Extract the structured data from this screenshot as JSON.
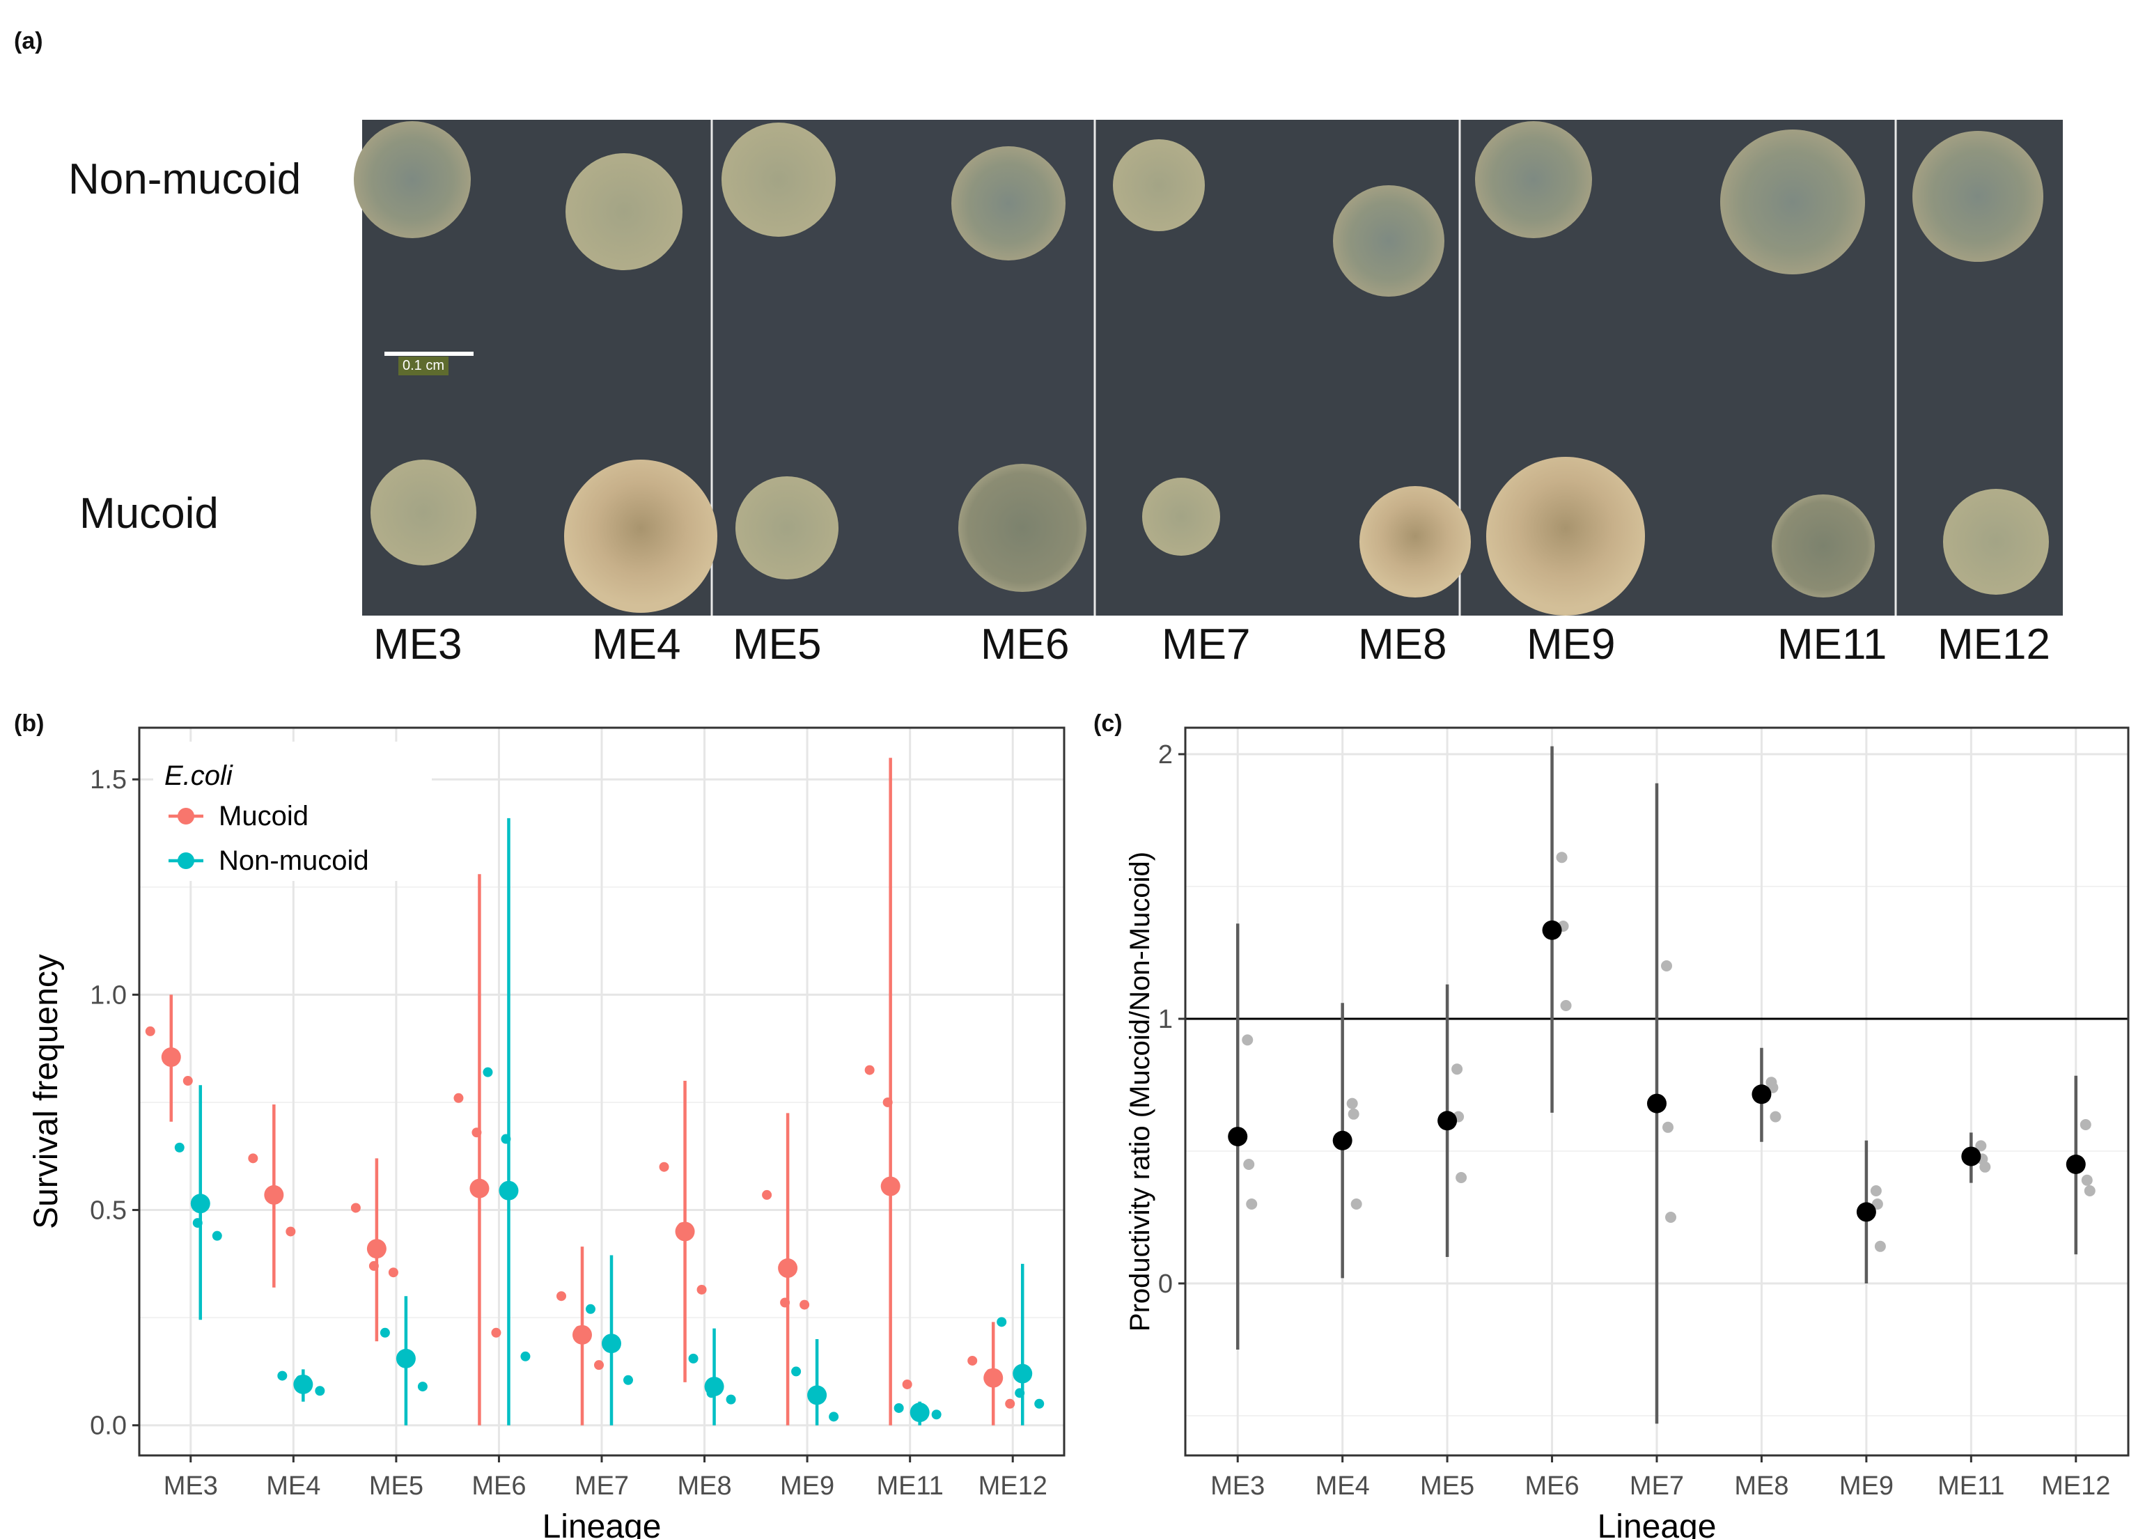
{
  "panel_a": {
    "letter": "(a)",
    "rows": [
      "Non-mucoid",
      "Mucoid"
    ],
    "scale_bar_label": "0.1 cm",
    "lineages": [
      "ME3",
      "ME4",
      "ME5",
      "ME6",
      "ME7",
      "ME8",
      "ME9",
      "ME11",
      "ME12"
    ],
    "colors": {
      "agar": "#3b4148",
      "colony_light": "#8f937f",
      "colony_dark": "#6e7668",
      "colony_tan": "#c7b08a"
    }
  },
  "panel_b": {
    "letter": "(b)"
  },
  "panel_c": {
    "letter": "(c)"
  },
  "chart_data": [
    {
      "type": "scatter",
      "xlabel": "Lineage",
      "ylabel": "Survival frequency",
      "categories": [
        "ME3",
        "ME4",
        "ME5",
        "ME6",
        "ME7",
        "ME8",
        "ME9",
        "ME11",
        "ME12"
      ],
      "ylim": [
        -0.07,
        1.62
      ],
      "yticks": [
        0.0,
        0.5,
        1.0,
        1.5
      ],
      "ytick_labels": [
        "0.0",
        "0.5",
        "1.0",
        "1.5"
      ],
      "grid": true,
      "legend": {
        "title": "E.coli",
        "position": "top-left",
        "entries": [
          "Mucoid",
          "Non-mucoid"
        ]
      },
      "series": [
        {
          "name": "Mucoid",
          "color": "#f8766d",
          "means": [
            0.855,
            0.535,
            0.41,
            0.55,
            0.21,
            0.45,
            0.365,
            0.555,
            0.11
          ],
          "ci_low": [
            0.705,
            0.32,
            0.195,
            0.0,
            0.0,
            0.1,
            0.0,
            0.0,
            0.0
          ],
          "ci_high": [
            1.0,
            0.745,
            0.62,
            1.28,
            0.415,
            0.8,
            0.725,
            1.55,
            0.24
          ],
          "points": [
            [
              0.915,
              0.85,
              0.8
            ],
            [
              0.62,
              0.535,
              0.45
            ],
            [
              0.505,
              0.37,
              0.355
            ],
            [
              0.76,
              0.68,
              0.215
            ],
            [
              0.3,
              0.22,
              0.14
            ],
            [
              0.6,
              0.46,
              0.315
            ],
            [
              0.535,
              0.285,
              0.28
            ],
            [
              0.825,
              0.75,
              0.095
            ],
            [
              0.15,
              0.12,
              0.05
            ]
          ]
        },
        {
          "name": "Non-mucoid",
          "color": "#00bfc4",
          "means": [
            0.515,
            0.095,
            0.155,
            0.545,
            0.19,
            0.09,
            0.07,
            0.03,
            0.12
          ],
          "ci_low": [
            0.245,
            0.055,
            0.0,
            0.0,
            0.0,
            0.0,
            0.0,
            0.0,
            0.0
          ],
          "ci_high": [
            0.79,
            0.13,
            0.3,
            1.41,
            0.395,
            0.225,
            0.2,
            0.055,
            0.375
          ],
          "points": [
            [
              0.645,
              0.47,
              0.44
            ],
            [
              0.115,
              0.105,
              0.08
            ],
            [
              0.215,
              0.155,
              0.09
            ],
            [
              0.82,
              0.665,
              0.16
            ],
            [
              0.27,
              0.195,
              0.105
            ],
            [
              0.155,
              0.075,
              0.06
            ],
            [
              0.125,
              0.075,
              0.02
            ],
            [
              0.04,
              0.03,
              0.025
            ],
            [
              0.24,
              0.075,
              0.05
            ]
          ]
        }
      ]
    },
    {
      "type": "scatter",
      "xlabel": "Lineage",
      "ylabel": "Productivity ratio (Mucoid/Non-Mucoid)",
      "categories": [
        "ME3",
        "ME4",
        "ME5",
        "ME6",
        "ME7",
        "ME8",
        "ME9",
        "ME11",
        "ME12"
      ],
      "ylim": [
        -0.65,
        2.1
      ],
      "yticks": [
        0,
        1,
        2
      ],
      "ytick_labels": [
        "0",
        "1",
        "2"
      ],
      "reference_line": 1,
      "grid": true,
      "series": [
        {
          "color": "#000000",
          "replicate_color": "#b5b5b5",
          "means": [
            0.555,
            0.54,
            0.615,
            1.335,
            0.68,
            0.715,
            0.27,
            0.48,
            0.45
          ],
          "ci_low": [
            -0.25,
            0.02,
            0.1,
            0.645,
            -0.53,
            0.535,
            0.0,
            0.38,
            0.11
          ],
          "ci_high": [
            1.36,
            1.06,
            1.13,
            2.03,
            1.89,
            0.89,
            0.54,
            0.57,
            0.785
          ],
          "points": [
            [
              0.92,
              0.45,
              0.3
            ],
            [
              0.68,
              0.64,
              0.3
            ],
            [
              0.81,
              0.63,
              0.4
            ],
            [
              1.61,
              1.35,
              1.05
            ],
            [
              1.2,
              0.59,
              0.25
            ],
            [
              0.76,
              0.74,
              0.63
            ],
            [
              0.35,
              0.3,
              0.14
            ],
            [
              0.52,
              0.47,
              0.44
            ],
            [
              0.6,
              0.39,
              0.35
            ]
          ]
        }
      ]
    }
  ]
}
